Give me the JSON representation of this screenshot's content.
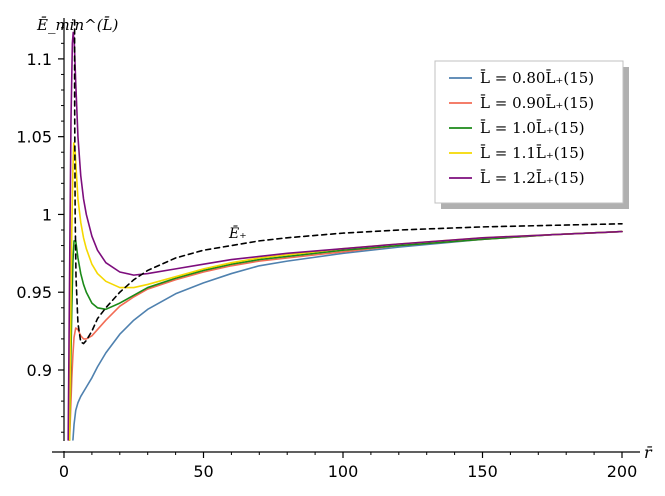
{
  "chart_data": {
    "type": "line",
    "title": "",
    "xlabel": "r̄",
    "ylabel": "Ē_min^(L̄)",
    "xlim": [
      0,
      200
    ],
    "ylim": [
      0.855,
      1.125
    ],
    "x_ticks": [
      0,
      50,
      100,
      150,
      200
    ],
    "x_tick_labels": [
      "0",
      "50",
      "100",
      "150",
      "200"
    ],
    "y_ticks": [
      0.9,
      0.95,
      1.0,
      1.05,
      1.1
    ],
    "y_tick_labels": [
      "0.9",
      "0.95",
      "1",
      "1.05",
      "1.1"
    ],
    "grid": false,
    "legend_position": "top-right",
    "series": [
      {
        "name": "L̄ = 0.80L̄₊(15)",
        "color": "#4f81af",
        "dash": "solid",
        "points": [
          [
            3.2,
            0.855
          ],
          [
            3.6,
            0.865
          ],
          [
            4.2,
            0.874
          ],
          [
            5,
            0.879
          ],
          [
            6,
            0.883
          ],
          [
            8,
            0.889
          ],
          [
            10,
            0.895
          ],
          [
            12,
            0.902
          ],
          [
            15,
            0.911
          ],
          [
            20,
            0.923
          ],
          [
            25,
            0.932
          ],
          [
            30,
            0.939
          ],
          [
            40,
            0.949
          ],
          [
            50,
            0.956
          ],
          [
            60,
            0.962
          ],
          [
            70,
            0.967
          ],
          [
            80,
            0.97
          ],
          [
            100,
            0.975
          ],
          [
            120,
            0.979
          ],
          [
            150,
            0.984
          ],
          [
            175,
            0.987
          ],
          [
            200,
            0.989
          ]
        ]
      },
      {
        "name": "L̄ = 0.90L̄₊(15)",
        "color": "#f26c55",
        "dash": "solid",
        "points": [
          [
            2.0,
            0.855
          ],
          [
            2.4,
            0.875
          ],
          [
            2.8,
            0.895
          ],
          [
            3.2,
            0.91
          ],
          [
            3.6,
            0.921
          ],
          [
            4.2,
            0.927
          ],
          [
            5,
            0.926
          ],
          [
            6,
            0.922
          ],
          [
            7,
            0.92
          ],
          [
            8,
            0.92
          ],
          [
            10,
            0.922
          ],
          [
            12,
            0.926
          ],
          [
            15,
            0.932
          ],
          [
            20,
            0.941
          ],
          [
            25,
            0.947
          ],
          [
            30,
            0.952
          ],
          [
            40,
            0.958
          ],
          [
            50,
            0.963
          ],
          [
            60,
            0.967
          ],
          [
            70,
            0.97
          ],
          [
            80,
            0.972
          ],
          [
            100,
            0.976
          ],
          [
            120,
            0.98
          ],
          [
            150,
            0.984
          ],
          [
            175,
            0.987
          ],
          [
            200,
            0.989
          ]
        ]
      },
      {
        "name": "L̄ = 1.0L̄₊(15)",
        "color": "#1b8a18",
        "dash": "solid",
        "points": [
          [
            2.0,
            0.855
          ],
          [
            2.4,
            0.9
          ],
          [
            2.8,
            0.94
          ],
          [
            3.2,
            0.97
          ],
          [
            3.6,
            0.983
          ],
          [
            4.2,
            0.983
          ],
          [
            5,
            0.972
          ],
          [
            6,
            0.962
          ],
          [
            7,
            0.955
          ],
          [
            8,
            0.95
          ],
          [
            10,
            0.943
          ],
          [
            12,
            0.94
          ],
          [
            15,
            0.939
          ],
          [
            20,
            0.943
          ],
          [
            25,
            0.948
          ],
          [
            30,
            0.953
          ],
          [
            40,
            0.959
          ],
          [
            50,
            0.964
          ],
          [
            60,
            0.968
          ],
          [
            70,
            0.971
          ],
          [
            80,
            0.973
          ],
          [
            100,
            0.977
          ],
          [
            120,
            0.98
          ],
          [
            150,
            0.984
          ],
          [
            175,
            0.987
          ],
          [
            200,
            0.989
          ]
        ]
      },
      {
        "name": "L̄ = 1.1L̄₊(15)",
        "color": "#f5d800",
        "dash": "solid",
        "points": [
          [
            2.0,
            0.855
          ],
          [
            2.4,
            0.93
          ],
          [
            2.8,
            0.99
          ],
          [
            3.2,
            1.03
          ],
          [
            3.5,
            1.046
          ],
          [
            4,
            1.04
          ],
          [
            5,
            1.01
          ],
          [
            6,
            0.995
          ],
          [
            7,
            0.985
          ],
          [
            8,
            0.978
          ],
          [
            10,
            0.968
          ],
          [
            12,
            0.962
          ],
          [
            15,
            0.957
          ],
          [
            20,
            0.953
          ],
          [
            25,
            0.953
          ],
          [
            30,
            0.955
          ],
          [
            40,
            0.96
          ],
          [
            50,
            0.965
          ],
          [
            60,
            0.969
          ],
          [
            70,
            0.972
          ],
          [
            80,
            0.974
          ],
          [
            100,
            0.978
          ],
          [
            120,
            0.981
          ],
          [
            150,
            0.985
          ],
          [
            175,
            0.987
          ],
          [
            200,
            0.989
          ]
        ]
      },
      {
        "name": "L̄ = 1.2L̄₊(15)",
        "color": "#7d0d7d",
        "dash": "solid",
        "points": [
          [
            1.5,
            0.855
          ],
          [
            2.0,
            0.96
          ],
          [
            2.5,
            1.06
          ],
          [
            3.0,
            1.11
          ],
          [
            3.3,
            1.117
          ],
          [
            3.7,
            1.11
          ],
          [
            4.2,
            1.085
          ],
          [
            5,
            1.05
          ],
          [
            6,
            1.025
          ],
          [
            7,
            1.01
          ],
          [
            8,
            1.0
          ],
          [
            10,
            0.986
          ],
          [
            12,
            0.977
          ],
          [
            15,
            0.969
          ],
          [
            20,
            0.963
          ],
          [
            25,
            0.961
          ],
          [
            30,
            0.962
          ],
          [
            40,
            0.965
          ],
          [
            50,
            0.968
          ],
          [
            60,
            0.971
          ],
          [
            70,
            0.973
          ],
          [
            80,
            0.975
          ],
          [
            100,
            0.978
          ],
          [
            120,
            0.981
          ],
          [
            150,
            0.985
          ],
          [
            175,
            0.987
          ],
          [
            200,
            0.989
          ]
        ]
      },
      {
        "name": "",
        "color": "#000000",
        "dash": "dashed",
        "points": [
          [
            3.8,
            1.125
          ],
          [
            3.8,
            1.08
          ],
          [
            4.0,
            1.0
          ],
          [
            4.3,
            0.96
          ],
          [
            5,
            0.93
          ],
          [
            6,
            0.918
          ],
          [
            7,
            0.917
          ],
          [
            8,
            0.919
          ],
          [
            10,
            0.925
          ],
          [
            12,
            0.933
          ],
          [
            15,
            0.94
          ],
          [
            20,
            0.95
          ],
          [
            25,
            0.958
          ],
          [
            30,
            0.964
          ],
          [
            40,
            0.972
          ],
          [
            50,
            0.977
          ],
          [
            60,
            0.98
          ],
          [
            70,
            0.983
          ],
          [
            80,
            0.985
          ],
          [
            100,
            0.988
          ],
          [
            120,
            0.99
          ],
          [
            150,
            0.992
          ],
          [
            175,
            0.993
          ],
          [
            200,
            0.994
          ]
        ]
      }
    ],
    "annotations": [
      {
        "text": "Ē₊",
        "x": 62,
        "y": 0.985
      }
    ]
  }
}
